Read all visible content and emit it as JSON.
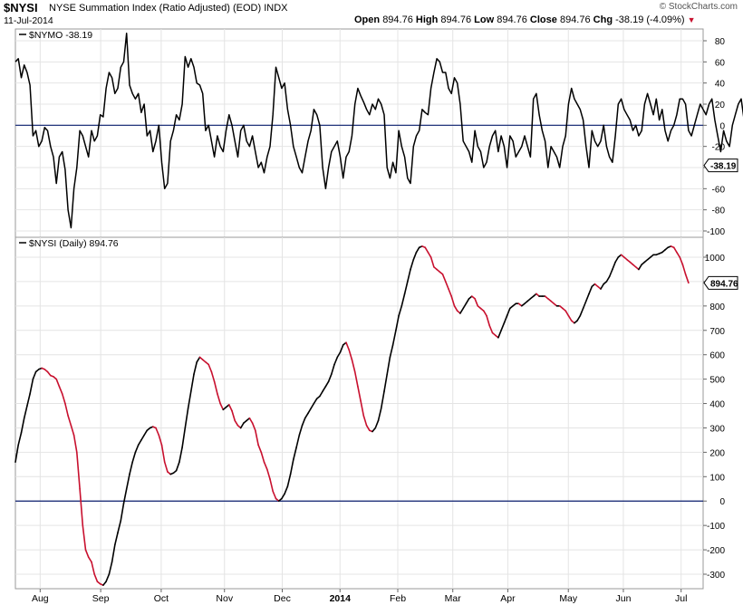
{
  "header": {
    "symbol": "$NYSI",
    "description": "NYSE Summation Index (Ratio Adjusted) (EOD)",
    "exchange": "INDX",
    "date": "11-Jul-2014",
    "open_label": "Open",
    "open": "894.76",
    "high_label": "High",
    "high": "894.76",
    "low_label": "Low",
    "low": "894.76",
    "close_label": "Close",
    "close": "894.76",
    "chg_label": "Chg",
    "chg": "-38.19 (-4.09%)",
    "brand": "© StockCharts.com"
  },
  "colors": {
    "up": "#000000",
    "down": "#c8102e",
    "zero_line": "#0a1e6e",
    "grid": "#e4e4e4",
    "frame": "#9a9a9a"
  },
  "chart_data": [
    {
      "type": "line",
      "panel": "top",
      "title": "$NYMO -38.19",
      "last_label": "-38.19",
      "ylim": [
        -105,
        90
      ],
      "yticks": [
        80,
        60,
        40,
        20,
        0,
        -20,
        -40,
        -60,
        -80,
        -100
      ],
      "zero_line": true,
      "x_range": [
        0,
        235
      ],
      "values": [
        60,
        63,
        45,
        57,
        50,
        38,
        -10,
        -5,
        -20,
        -15,
        -2,
        -5,
        -20,
        -30,
        -55,
        -30,
        -25,
        -42,
        -80,
        -97,
        -60,
        -40,
        -5,
        -10,
        -20,
        -30,
        -5,
        -15,
        -10,
        10,
        8,
        35,
        50,
        45,
        30,
        35,
        55,
        60,
        87,
        38,
        30,
        25,
        30,
        12,
        20,
        -10,
        -5,
        -25,
        -15,
        0,
        -35,
        -60,
        -55,
        -15,
        -5,
        10,
        5,
        20,
        65,
        55,
        63,
        55,
        40,
        38,
        30,
        -5,
        0,
        -15,
        -30,
        -10,
        -20,
        -25,
        -5,
        10,
        0,
        -15,
        -30,
        -5,
        0,
        -15,
        -20,
        -10,
        -25,
        -40,
        -35,
        -45,
        -30,
        -20,
        10,
        55,
        45,
        35,
        40,
        15,
        0,
        -20,
        -30,
        -40,
        -45,
        -30,
        -15,
        -5,
        15,
        10,
        0,
        -40,
        -60,
        -40,
        -25,
        -20,
        -15,
        -30,
        -50,
        -30,
        -25,
        -10,
        20,
        35,
        28,
        22,
        15,
        10,
        20,
        15,
        25,
        20,
        10,
        -40,
        -50,
        -35,
        -45,
        -5,
        -20,
        -30,
        -50,
        -55,
        -20,
        -10,
        -5,
        15,
        12,
        10,
        35,
        50,
        63,
        60,
        50,
        50,
        35,
        30,
        45,
        40,
        20,
        -15,
        -20,
        -25,
        -35,
        -5,
        -20,
        -25,
        -40,
        -35,
        -20,
        -10,
        -5,
        -25,
        -10,
        -20,
        -40,
        -10,
        -15,
        -30,
        -25,
        -20,
        -10,
        -20,
        -30,
        25,
        30,
        10,
        -5,
        -15,
        -40,
        -20,
        -25,
        -30,
        -40,
        -20,
        -10,
        20,
        35,
        25,
        20,
        15,
        5,
        -20,
        -40,
        -5,
        -15,
        -20,
        -15,
        0,
        -20,
        -30,
        -35,
        -10,
        20,
        25,
        15,
        10,
        5,
        -5,
        0,
        -10,
        -5,
        20,
        30,
        20,
        10,
        25,
        5,
        15,
        -5,
        -15,
        -5,
        0,
        10,
        25,
        25,
        20,
        -5,
        -10,
        0,
        10,
        20,
        15,
        10,
        20,
        25,
        5,
        -10,
        -25,
        -5,
        -15,
        -20,
        0,
        10,
        20,
        25,
        5,
        -25,
        -38,
        -38
      ]
    },
    {
      "type": "line",
      "panel": "bottom",
      "title": "$NYSI (Daily) 894.76",
      "last_label": "894.76",
      "ylim": [
        -345,
        1065
      ],
      "yticks": [
        1000,
        900,
        800,
        700,
        600,
        500,
        400,
        300,
        200,
        100,
        0,
        -100,
        -200,
        -300
      ],
      "zero_line": true,
      "x_range": [
        0,
        235
      ],
      "series_color_rule": "black when rising, red when falling",
      "values": [
        160,
        230,
        280,
        340,
        390,
        440,
        500,
        530,
        540,
        545,
        540,
        530,
        515,
        510,
        500,
        470,
        440,
        400,
        350,
        310,
        270,
        200,
        50,
        -100,
        -200,
        -230,
        -250,
        -300,
        -330,
        -340,
        -345,
        -330,
        -300,
        -250,
        -180,
        -130,
        -80,
        -10,
        50,
        110,
        160,
        200,
        230,
        250,
        270,
        290,
        300,
        305,
        300,
        270,
        230,
        160,
        120,
        110,
        115,
        125,
        160,
        220,
        300,
        380,
        450,
        520,
        570,
        590,
        580,
        570,
        560,
        530,
        490,
        440,
        400,
        375,
        385,
        395,
        370,
        330,
        310,
        300,
        320,
        330,
        340,
        320,
        290,
        230,
        200,
        160,
        130,
        90,
        40,
        10,
        0,
        10,
        30,
        60,
        110,
        170,
        220,
        270,
        310,
        340,
        360,
        380,
        400,
        420,
        430,
        450,
        470,
        490,
        520,
        560,
        590,
        610,
        640,
        650,
        620,
        580,
        530,
        470,
        410,
        350,
        310,
        290,
        285,
        300,
        330,
        380,
        450,
        520,
        590,
        640,
        700,
        760,
        800,
        850,
        900,
        950,
        990,
        1020,
        1040,
        1045,
        1040,
        1020,
        1000,
        960,
        950,
        940,
        930,
        900,
        870,
        840,
        800,
        780,
        770,
        790,
        810,
        830,
        840,
        830,
        800,
        790,
        780,
        760,
        720,
        690,
        680,
        670,
        700,
        730,
        760,
        790,
        800,
        810,
        810,
        800,
        810,
        820,
        830,
        840,
        850,
        840,
        840,
        840,
        830,
        820,
        810,
        800,
        800,
        790,
        780,
        760,
        740,
        730,
        740,
        760,
        790,
        820,
        850,
        880,
        890,
        880,
        870,
        890,
        900,
        920,
        950,
        980,
        1000,
        1010,
        1000,
        990,
        980,
        970,
        960,
        950,
        970,
        980,
        990,
        1000,
        1010,
        1010,
        1015,
        1020,
        1030,
        1040,
        1045,
        1040,
        1020,
        1000,
        970,
        930,
        894.76
      ]
    }
  ],
  "x_axis": {
    "labels": [
      {
        "x": 9,
        "label": "Aug",
        "bold": false
      },
      {
        "x": 31,
        "label": "Sep",
        "bold": false
      },
      {
        "x": 53,
        "label": "Oct",
        "bold": false
      },
      {
        "x": 76,
        "label": "Nov",
        "bold": false
      },
      {
        "x": 97,
        "label": "Dec",
        "bold": false
      },
      {
        "x": 118,
        "label": "2014",
        "bold": true
      },
      {
        "x": 139,
        "label": "Feb",
        "bold": false
      },
      {
        "x": 159,
        "label": "Mar",
        "bold": false
      },
      {
        "x": 179,
        "label": "Apr",
        "bold": false
      },
      {
        "x": 201,
        "label": "May",
        "bold": false
      },
      {
        "x": 221,
        "label": "Jun",
        "bold": false
      },
      {
        "x": 242,
        "label": "Jul",
        "bold": false
      }
    ]
  }
}
